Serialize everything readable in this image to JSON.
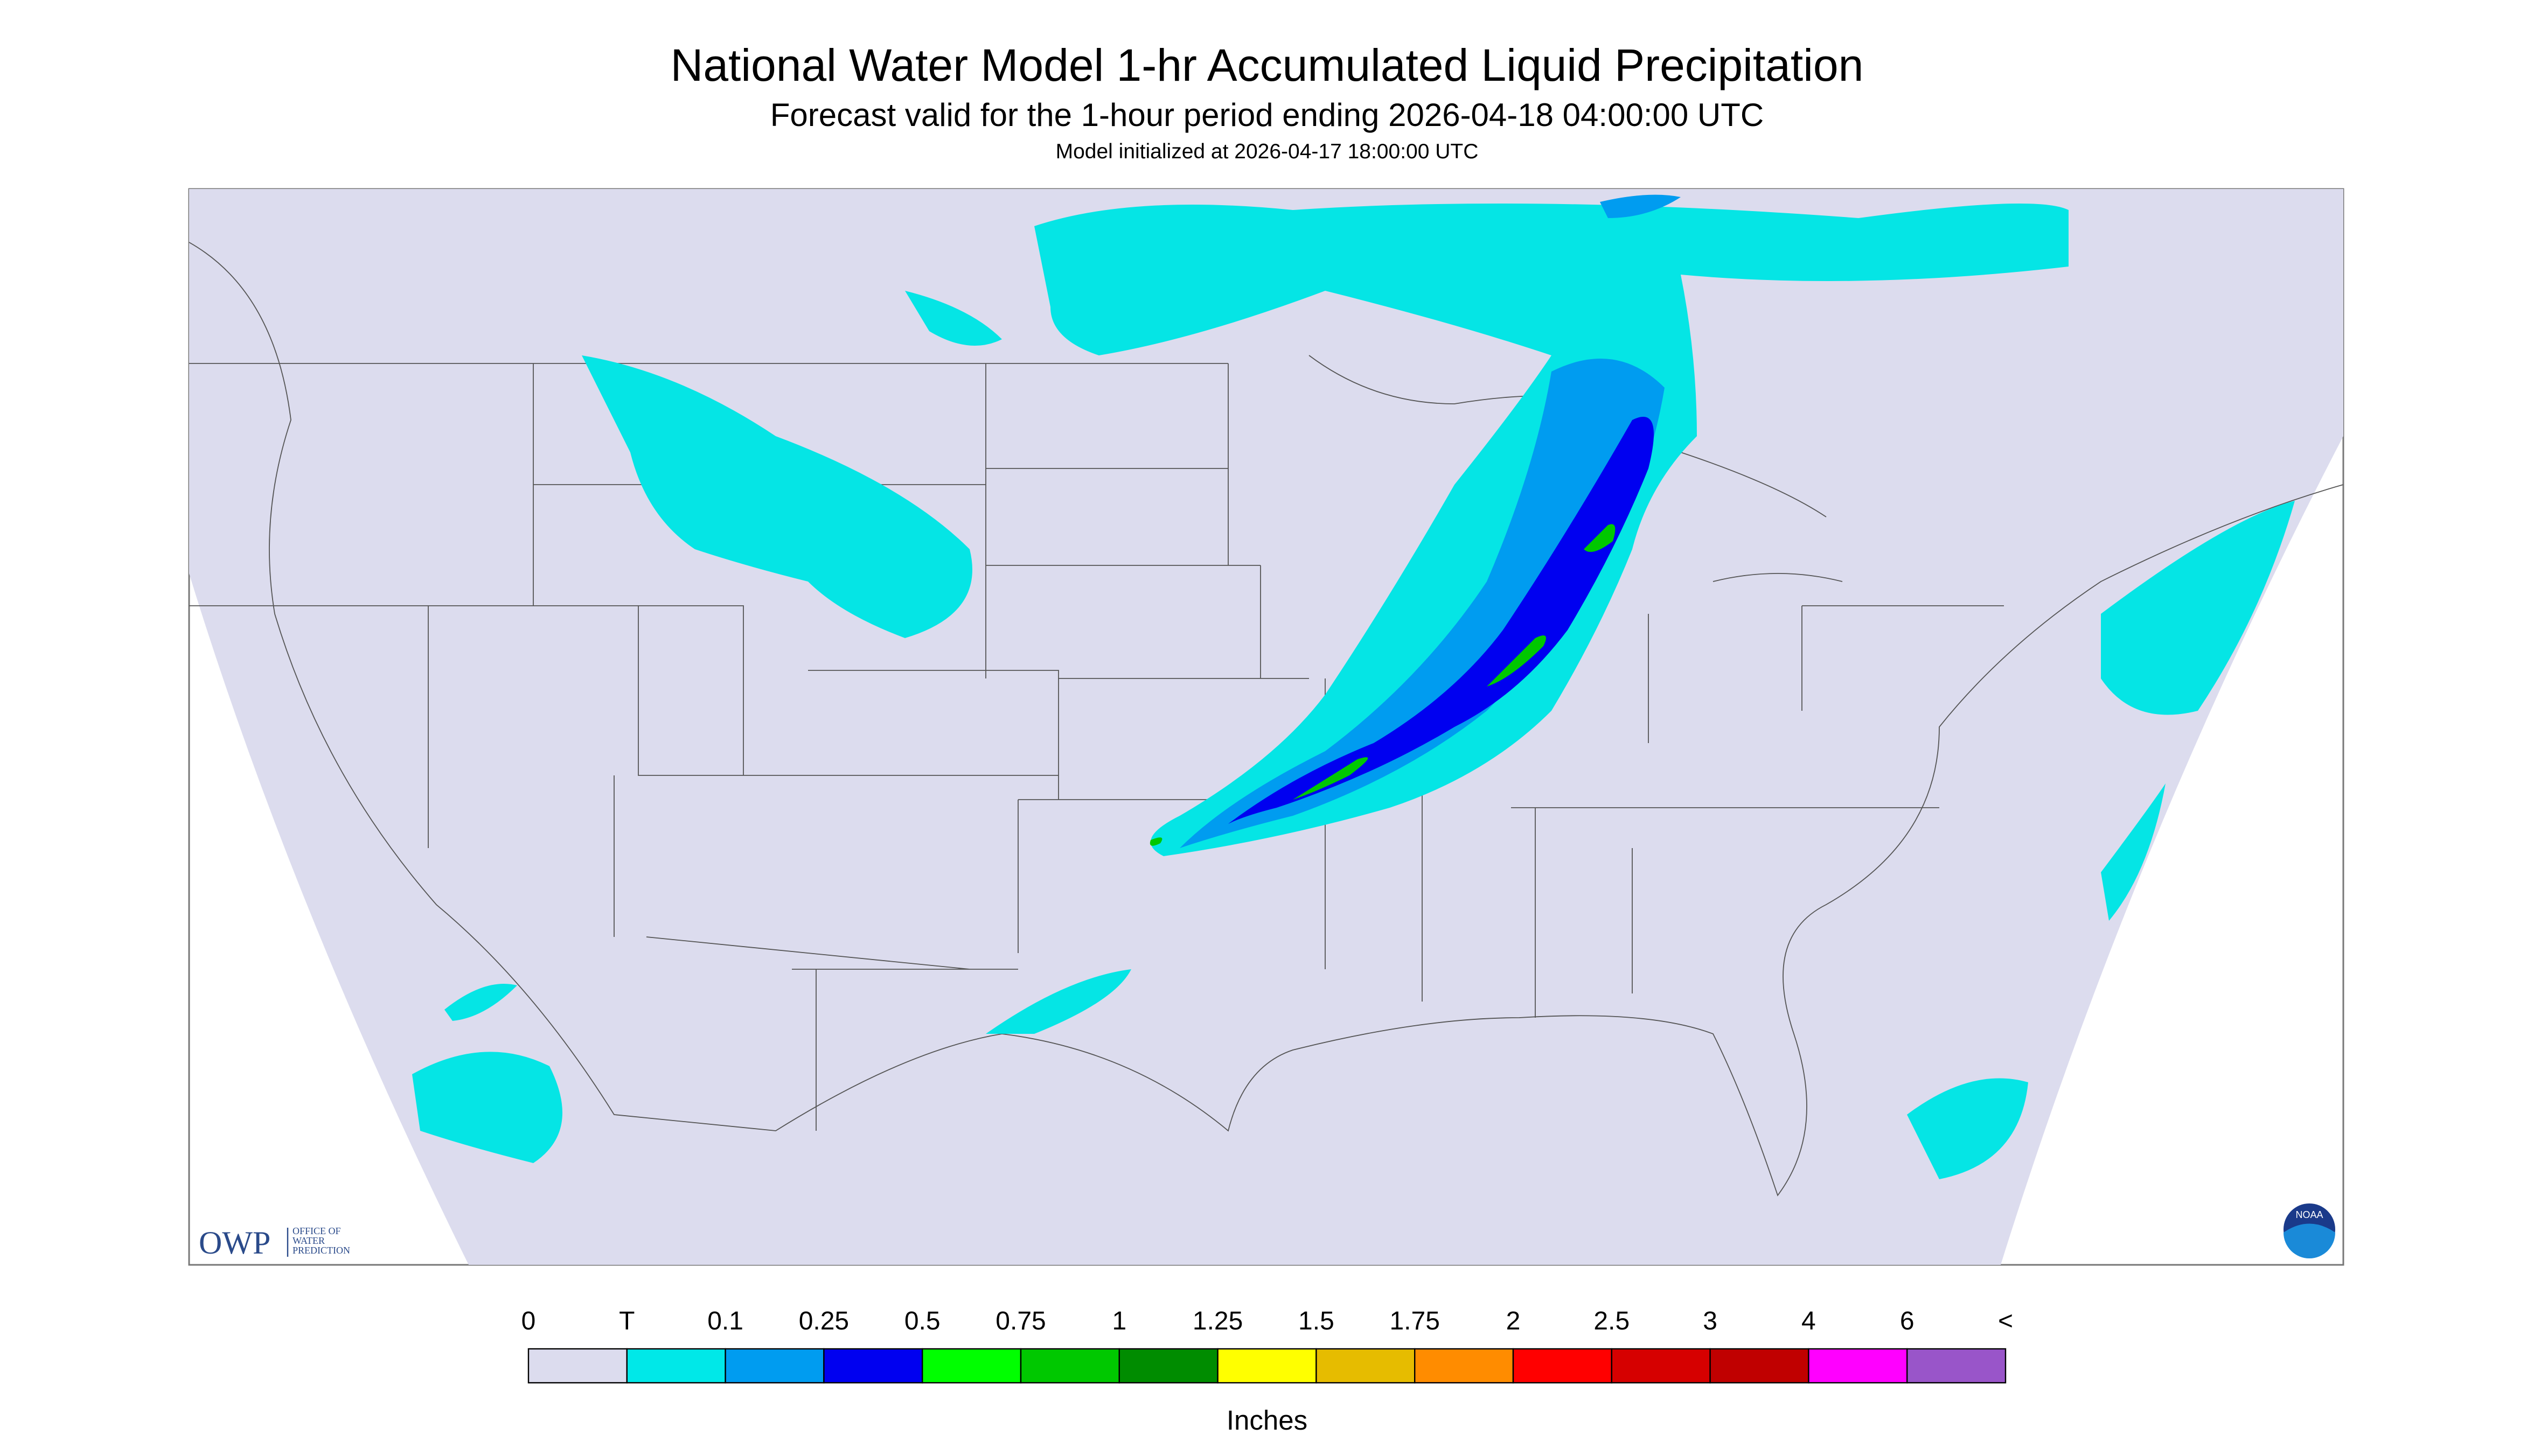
{
  "header": {
    "title": "National Water Model 1-hr Accumulated Liquid Precipitation",
    "subtitle": "Forecast valid for the 1-hour period ending 2026-04-18 04:00:00 UTC",
    "init": "Model initialized at 2026-04-17 18:00:00 UTC"
  },
  "legend": {
    "labels": [
      "0",
      "T",
      "0.1",
      "0.25",
      "0.5",
      "0.75",
      "1",
      "1.25",
      "1.5",
      "1.75",
      "2",
      "2.5",
      "3",
      "4",
      "6",
      "<"
    ],
    "colors": [
      "#dcdcee",
      "#00e8e8",
      "#009cf0",
      "#0000f0",
      "#00ff00",
      "#00c800",
      "#008c00",
      "#ffff00",
      "#e6bc00",
      "#ff8c00",
      "#ff0000",
      "#d60000",
      "#c00000",
      "#ff00ff",
      "#9955c9"
    ],
    "units": "Inches"
  },
  "logos": {
    "owp": "OWP",
    "owp_line1": "OFFICE OF",
    "owp_line2": "WATER",
    "owp_line3": "PREDICTION",
    "noaa": "NOAA"
  }
}
